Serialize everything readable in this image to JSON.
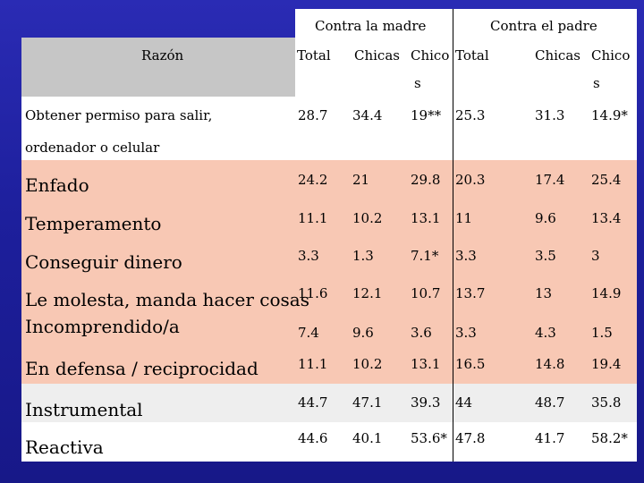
{
  "header": {
    "group_madre": "Contra la madre",
    "group_padre": "Contra el padre",
    "razon": "Razón",
    "madre_cols": [
      "Total",
      "Chicas",
      "Chico"
    ],
    "madre_chico_suffix": "s",
    "padre_cols": [
      "Total",
      "Chicas",
      "Chico"
    ],
    "padre_chico_suffix": "s"
  },
  "rows": [
    {
      "label": "Obtener permiso para salir,",
      "label2": "ordenador o celular",
      "values": [
        "28.7",
        "34.4",
        "19**",
        "25.3",
        "31.3",
        "14.9*"
      ]
    },
    {
      "label": "Enfado",
      "values": [
        "24.2",
        "21",
        "29.8",
        "20.3",
        "17.4",
        "25.4"
      ]
    },
    {
      "label": "Temperamento",
      "values": [
        "11.1",
        "10.2",
        "13.1",
        "11",
        "9.6",
        "13.4"
      ]
    },
    {
      "label": "Conseguir dinero",
      "values": [
        "3.3",
        "1.3",
        "7.1*",
        "3.3",
        "3.5",
        "3"
      ]
    },
    {
      "label": "Le molesta, manda hacer cosas",
      "values": [
        "11.6",
        "12.1",
        "10.7",
        "13.7",
        "13",
        "14.9"
      ]
    },
    {
      "label": "Incomprendido/a",
      "values": [
        "7.4",
        "9.6",
        "3.6",
        "3.3",
        "4.3",
        "1.5"
      ]
    },
    {
      "label": "En defensa / reciprocidad",
      "values": [
        "11.1",
        "10.2",
        "13.1",
        "16.5",
        "14.8",
        "19.4"
      ]
    },
    {
      "label": "Instrumental",
      "values": [
        "44.7",
        "47.1",
        "39.3",
        "44",
        "48.7",
        "35.8"
      ]
    },
    {
      "label": "Reactiva",
      "values": [
        "44.6",
        "40.1",
        "53.6*",
        "47.8",
        "41.7",
        "58.2*"
      ]
    }
  ],
  "colors": {
    "background": "#1d1f9c",
    "header_gray": "#c6c6c6",
    "row_peach": "#f8c8b4",
    "row_light": "#eeeeee",
    "row_white": "#ffffff"
  }
}
